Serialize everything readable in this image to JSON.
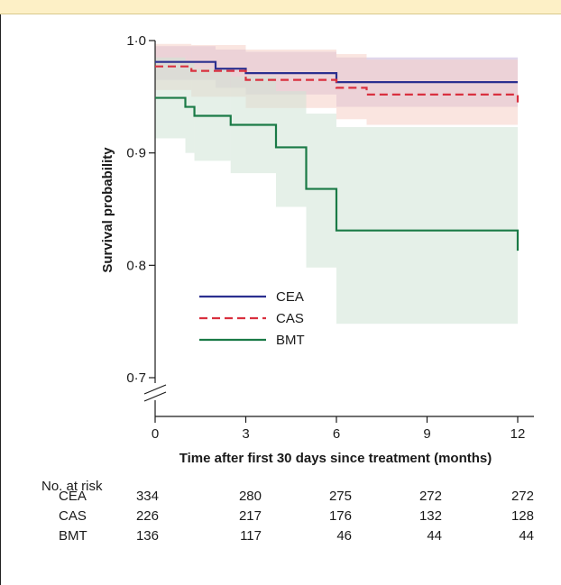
{
  "chart_data": {
    "type": "line",
    "title": "",
    "xlabel": "Time after first 30 days since treatment (months)",
    "ylabel": "Survival probability",
    "xlim": [
      0,
      12
    ],
    "ylim": [
      0.7,
      1.0
    ],
    "x_ticks": [
      0,
      3,
      6,
      9,
      12
    ],
    "x_tick_labels": [
      "0",
      "3",
      "6",
      "9",
      "12"
    ],
    "y_ticks": [
      0.7,
      0.8,
      0.9,
      1.0
    ],
    "y_tick_labels": [
      "0·7",
      "0·8",
      "0·9",
      "1·0"
    ],
    "axis_break": true,
    "legend_position": "lower-center",
    "series": [
      {
        "name": "CEA",
        "color": "#2b2f8f",
        "dash": "solid",
        "x": [
          0,
          2,
          3,
          6,
          12
        ],
        "y": [
          0.981,
          0.975,
          0.971,
          0.963,
          0.963
        ],
        "ci_color": "#c7b4d9",
        "ci": [
          {
            "x0": 0,
            "x1": 2,
            "lo": 0.965,
            "hi": 0.995
          },
          {
            "x0": 2,
            "x1": 3,
            "lo": 0.958,
            "hi": 0.992
          },
          {
            "x0": 3,
            "x1": 6,
            "lo": 0.952,
            "hi": 0.99
          },
          {
            "x0": 6,
            "x1": 12,
            "lo": 0.941,
            "hi": 0.985
          }
        ]
      },
      {
        "name": "CAS",
        "color": "#d9303f",
        "dash": "dashed",
        "x": [
          0,
          1.2,
          3,
          6,
          7,
          12
        ],
        "y": [
          0.977,
          0.973,
          0.965,
          0.958,
          0.952,
          0.945
        ],
        "ci_color": "#f6cfc6",
        "ci": [
          {
            "x0": 0,
            "x1": 1.2,
            "lo": 0.956,
            "hi": 0.997
          },
          {
            "x0": 1.2,
            "x1": 3,
            "lo": 0.95,
            "hi": 0.996
          },
          {
            "x0": 3,
            "x1": 6,
            "lo": 0.94,
            "hi": 0.992
          },
          {
            "x0": 6,
            "x1": 7,
            "lo": 0.93,
            "hi": 0.988
          },
          {
            "x0": 7,
            "x1": 12,
            "lo": 0.925,
            "hi": 0.983
          }
        ]
      },
      {
        "name": "BMT",
        "color": "#1a7a46",
        "dash": "solid",
        "x": [
          0,
          1,
          1.3,
          2.5,
          4,
          5,
          6,
          12
        ],
        "y": [
          0.949,
          0.941,
          0.933,
          0.925,
          0.905,
          0.868,
          0.831,
          0.813
        ],
        "ci_color": "#cfe3d6",
        "ci": [
          {
            "x0": 0,
            "x1": 1,
            "lo": 0.913,
            "hi": 0.985
          },
          {
            "x0": 1,
            "x1": 1.3,
            "lo": 0.9,
            "hi": 0.98
          },
          {
            "x0": 1.3,
            "x1": 2.5,
            "lo": 0.893,
            "hi": 0.975
          },
          {
            "x0": 2.5,
            "x1": 4,
            "lo": 0.882,
            "hi": 0.968
          },
          {
            "x0": 4,
            "x1": 5,
            "lo": 0.852,
            "hi": 0.955
          },
          {
            "x0": 5,
            "x1": 6,
            "lo": 0.798,
            "hi": 0.935
          },
          {
            "x0": 6,
            "x1": 12,
            "lo": 0.748,
            "hi": 0.923
          }
        ]
      }
    ],
    "risk_table": {
      "title": "No. at risk",
      "time_points": [
        0,
        3,
        6,
        9,
        12
      ],
      "rows": [
        {
          "label": "CEA",
          "values": [
            "334",
            "280",
            "275",
            "272",
            "272"
          ]
        },
        {
          "label": "CAS",
          "values": [
            "226",
            "217",
            "176",
            "132",
            "128"
          ]
        },
        {
          "label": "BMT",
          "values": [
            "136",
            "117",
            "46",
            "44",
            "44"
          ]
        }
      ]
    }
  }
}
